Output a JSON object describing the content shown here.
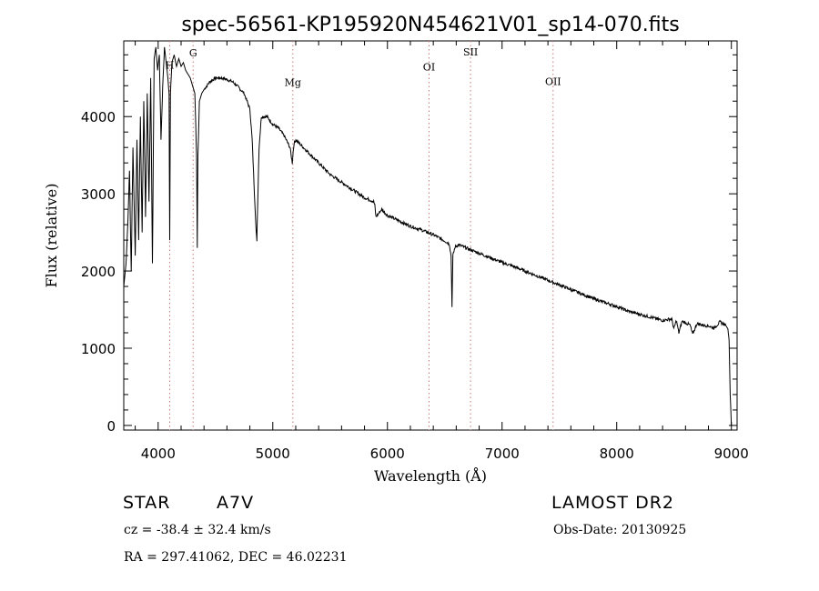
{
  "chart_data": {
    "type": "line",
    "title": "spec-56561-KP195920N454621V01_sp14-070.fits",
    "xlabel": "Wavelength (Å)",
    "ylabel": "Flux (relative)",
    "xlim": [
      3700,
      9050
    ],
    "ylim": [
      -60,
      4980
    ],
    "xticks": [
      4000,
      5000,
      6000,
      7000,
      8000,
      9000
    ],
    "xtick_labels": [
      "4000",
      "5000",
      "6000",
      "7000",
      "8000",
      "9000"
    ],
    "yticks": [
      0,
      1000,
      2000,
      3000,
      4000
    ],
    "ytick_labels": [
      "0",
      "1000",
      "2000",
      "3000",
      "4000"
    ],
    "grid": false,
    "series": [
      {
        "name": "spectrum",
        "x": [
          3700,
          3720,
          3735,
          3750,
          3765,
          3780,
          3800,
          3815,
          3830,
          3845,
          3860,
          3875,
          3890,
          3905,
          3920,
          3935,
          3950,
          3965,
          3980,
          3995,
          4010,
          4025,
          4040,
          4055,
          4070,
          4085,
          4095,
          4101,
          4107,
          4120,
          4140,
          4160,
          4180,
          4200,
          4220,
          4240,
          4260,
          4280,
          4300,
          4320,
          4335,
          4341,
          4347,
          4360,
          4380,
          4400,
          4450,
          4500,
          4550,
          4600,
          4650,
          4700,
          4750,
          4800,
          4820,
          4840,
          4855,
          4861,
          4867,
          4880,
          4900,
          4950,
          5000,
          5050,
          5100,
          5150,
          5170,
          5175,
          5185,
          5200,
          5300,
          5400,
          5500,
          5600,
          5700,
          5800,
          5880,
          5890,
          5900,
          5950,
          6000,
          6100,
          6200,
          6300,
          6400,
          6500,
          6540,
          6555,
          6563,
          6571,
          6590,
          6620,
          6700,
          6800,
          6900,
          7000,
          7100,
          7200,
          7300,
          7400,
          7500,
          7600,
          7700,
          7800,
          7900,
          8000,
          8100,
          8200,
          8300,
          8400,
          8480,
          8498,
          8520,
          8542,
          8570,
          8600,
          8640,
          8662,
          8700,
          8750,
          8800,
          8850,
          8900,
          8950,
          8970,
          8980,
          8990,
          9000
        ],
        "y": [
          1800,
          2100,
          2600,
          3300,
          2000,
          3600,
          2200,
          3700,
          2400,
          4000,
          2500,
          4200,
          2700,
          4300,
          2900,
          4500,
          2100,
          4750,
          4900,
          4600,
          4800,
          3700,
          4400,
          4900,
          4700,
          4500,
          4300,
          2400,
          4300,
          4700,
          4800,
          4650,
          4750,
          4650,
          4700,
          4600,
          4550,
          4500,
          4400,
          4300,
          3500,
          2300,
          3500,
          4200,
          4300,
          4350,
          4450,
          4500,
          4500,
          4480,
          4450,
          4380,
          4300,
          4100,
          3700,
          3000,
          2500,
          2400,
          2800,
          3600,
          4000,
          4000,
          3900,
          3850,
          3750,
          3600,
          3400,
          3500,
          3650,
          3700,
          3550,
          3400,
          3250,
          3150,
          3050,
          2950,
          2900,
          2850,
          2700,
          2800,
          2720,
          2650,
          2580,
          2530,
          2470,
          2390,
          2350,
          2200,
          1550,
          2200,
          2310,
          2340,
          2290,
          2230,
          2170,
          2110,
          2060,
          2000,
          1940,
          1880,
          1820,
          1760,
          1700,
          1640,
          1590,
          1540,
          1480,
          1440,
          1400,
          1360,
          1380,
          1250,
          1360,
          1200,
          1350,
          1330,
          1300,
          1180,
          1320,
          1300,
          1290,
          1260,
          1340,
          1300,
          1250,
          1100,
          400,
          0
        ]
      }
    ],
    "line_markers": [
      {
        "label": "H",
        "x": 4101,
        "label_y": 4620
      },
      {
        "label": "G",
        "x": 4305,
        "label_y": 4780
      },
      {
        "label": "Mg",
        "x": 5175,
        "label_y": 4400
      },
      {
        "label": "OI",
        "x": 6363,
        "label_y": 4600
      },
      {
        "label": "SII",
        "x": 6725,
        "label_y": 4790
      },
      {
        "label": "OII",
        "x": 7445,
        "label_y": 4410
      }
    ],
    "colors": {
      "spectrum": "#000000",
      "marker_line": "#c87878"
    }
  },
  "info": {
    "object_type": "STAR",
    "spectral_class": "A7V",
    "survey": "LAMOST DR2",
    "redshift": "cz = -38.4 ± 32.4 km/s",
    "obs_date": "Obs-Date: 20130925",
    "coordinates": "RA = 297.41062, DEC =  46.02231"
  }
}
